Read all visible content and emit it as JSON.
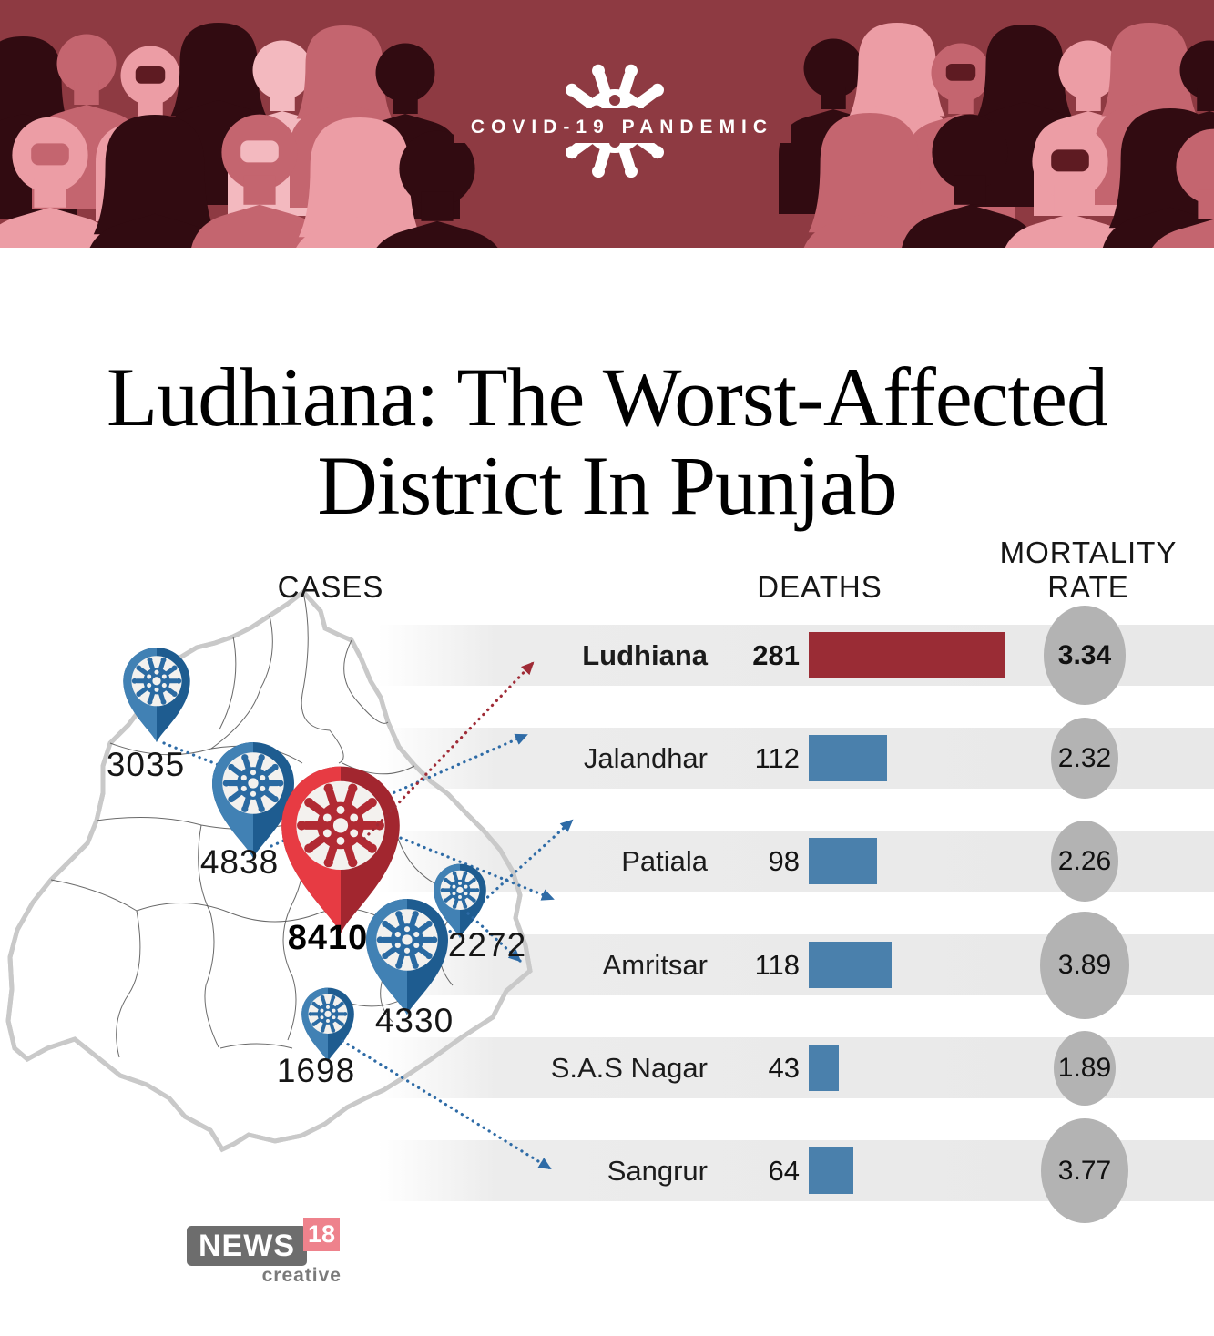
{
  "banner": {
    "label": "COVID-19 PANDEMIC"
  },
  "title": {
    "line1": "Ludhiana: The Worst-Affected",
    "line2": "District In Punjab"
  },
  "headers": {
    "cases": "CASES",
    "deaths": "DEATHS",
    "mortality": [
      "MORTALITY",
      "RATE"
    ]
  },
  "map_pins": [
    {
      "district": "Amritsar",
      "cases": "3035",
      "highlight": false
    },
    {
      "district": "Jalandhar",
      "cases": "4838",
      "highlight": false
    },
    {
      "district": "Ludhiana",
      "cases": "8410",
      "highlight": true
    },
    {
      "district": "S.A.S Nagar",
      "cases": "2272",
      "highlight": false
    },
    {
      "district": "Patiala",
      "cases": "4330",
      "highlight": false
    },
    {
      "district": "Sangrur",
      "cases": "1698",
      "highlight": false
    }
  ],
  "table": {
    "rows": [
      {
        "name": "Ludhiana",
        "deaths": 281,
        "rate": 3.34,
        "highlight": true
      },
      {
        "name": "Jalandhar",
        "deaths": 112,
        "rate": 2.32,
        "highlight": false
      },
      {
        "name": "Patiala",
        "deaths": 98,
        "rate": 2.26,
        "highlight": false
      },
      {
        "name": "Amritsar",
        "deaths": 118,
        "rate": 3.89,
        "highlight": false
      },
      {
        "name": "S.A.S Nagar",
        "deaths": 43,
        "rate": 1.89,
        "highlight": false
      },
      {
        "name": "Sangrur",
        "deaths": 64,
        "rate": 3.77,
        "highlight": false
      }
    ]
  },
  "logo": {
    "name": "NEWS",
    "number": "18",
    "tagline": "creative"
  },
  "colors": {
    "banner_bg": "#8e3a42",
    "bar_red": "#9a2c35",
    "bar_blue": "#4a80ac",
    "row_bg": "#ececec",
    "circle_gray": "#b3b3b3",
    "pin_blue_light": "#4181b4",
    "pin_blue_dark": "#1e5c90",
    "pin_red_light": "#e73b43",
    "pin_red_dark": "#a2262f",
    "virus_blue": "#2a6aa2",
    "virus_red": "#b12a33",
    "arrow_blue": "#2e6ba6",
    "arrow_red": "#9f2b36",
    "map_fill": "#f8f8de",
    "map_border": "#5a5a5a",
    "logo_gray": "#6d6d6d",
    "logo_pink": "#ee828c",
    "text_dark": "#1a1a1a",
    "crowd_dark": "#310b11",
    "crowd_rose": "#c4656f",
    "crowd_light": "#ec9da5",
    "crowd_pale": "#f3b9bf"
  },
  "chart_data": {
    "type": "bar",
    "title": "Ludhiana: The Worst-Affected District In Punjab",
    "subtitle": "COVID-19 PANDEMIC",
    "categories": [
      "Ludhiana",
      "Jalandhar",
      "Patiala",
      "Amritsar",
      "S.A.S Nagar",
      "Sangrur"
    ],
    "series": [
      {
        "name": "Cases",
        "values": [
          8410,
          4838,
          4330,
          3035,
          2272,
          1698
        ]
      },
      {
        "name": "Deaths",
        "values": [
          281,
          112,
          98,
          118,
          43,
          64
        ]
      },
      {
        "name": "Mortality Rate",
        "values": [
          3.34,
          2.32,
          2.26,
          3.89,
          1.89,
          3.77
        ]
      }
    ],
    "notes": "Cases shown as pins on a Punjab district map; deaths as horizontal bars; mortality rate as sized gray circles. Ludhiana highlighted in maroon."
  }
}
